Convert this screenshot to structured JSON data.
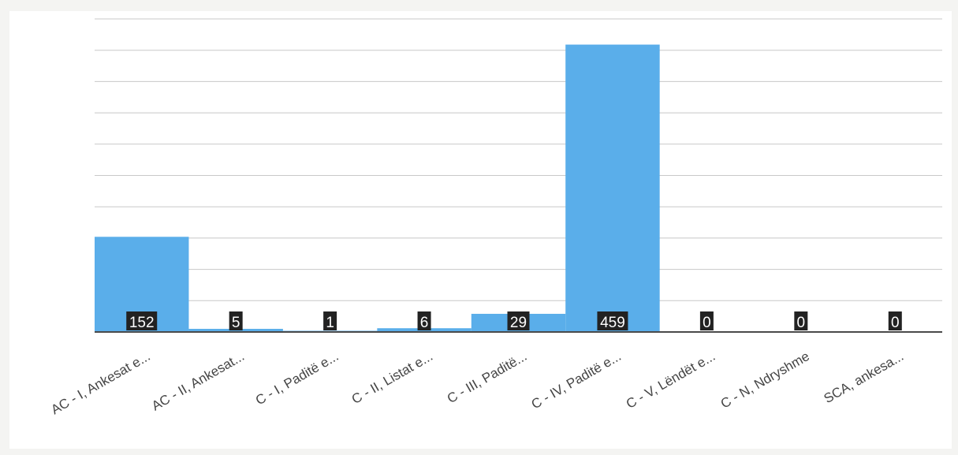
{
  "chart_data": {
    "type": "bar",
    "categories": [
      "AC - I, Ankesat e...",
      "AC - II, Ankesat...",
      "C - I, Paditë e...",
      "C - II, Listat e...",
      "C - III, Paditë...",
      "C - IV, Paditë e...",
      "C - V, Lëndët e...",
      "C - N, Ndryshme",
      "SCA, ankesa..."
    ],
    "values": [
      152,
      5,
      1,
      6,
      29,
      459,
      0,
      0,
      0
    ],
    "ylim": [
      0,
      500
    ],
    "grid": true,
    "data_labels": true,
    "colors": {
      "bar": "#5aaeea",
      "label_bg": "#222222",
      "label_text": "#ffffff"
    }
  }
}
